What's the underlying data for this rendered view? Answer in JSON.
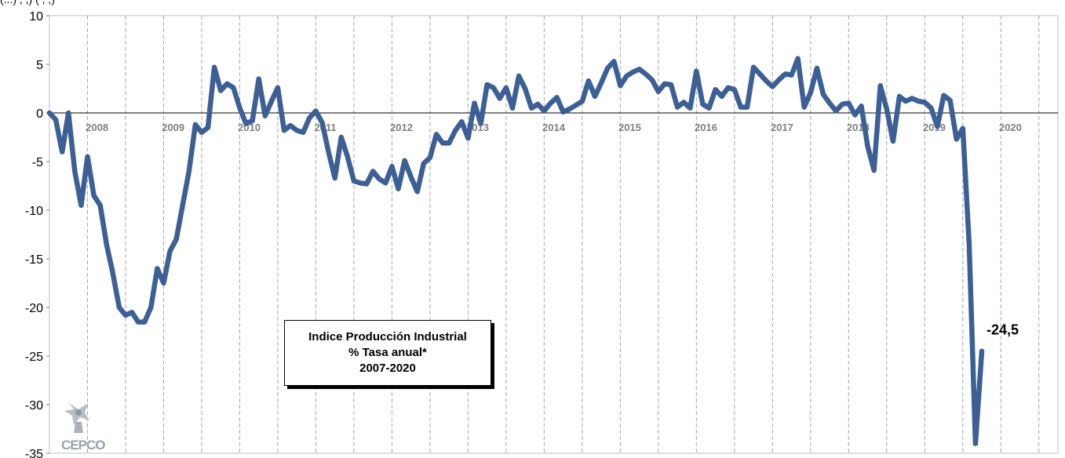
{
  "header": {
    "note": "(...) ,  ,)                              (  ,  ,)"
  },
  "title_box": {
    "line1": "Indice Producción Industrial",
    "line2": "% Tasa anual*",
    "line3": "2007-2020"
  },
  "logo": {
    "text": "CEPCO"
  },
  "colors": {
    "line": "#3c5f95",
    "grid_v": "#a6a6a6",
    "grid_h": "#d9d9d9",
    "zero_line": "#000000"
  },
  "chart_data": {
    "type": "line",
    "title": "Indice Producción Industrial % Tasa anual* 2007-2020",
    "xlabel": "",
    "ylabel": "",
    "ylim": [
      -35,
      10
    ],
    "yticks": [
      10,
      5,
      0,
      -5,
      -10,
      -15,
      -20,
      -25,
      -30,
      -35
    ],
    "ytick_labels": [
      "10",
      "5",
      "0",
      "-5",
      "-10",
      "-15",
      "-20",
      "-25",
      "-30",
      "-35"
    ],
    "xticks": [
      "2008",
      "2009",
      "2010",
      "2011",
      "2012",
      "2013",
      "2014",
      "2015",
      "2016",
      "2017",
      "2018",
      "2019",
      "2020"
    ],
    "grid": "vertical dashed",
    "end_label": "-24,5",
    "series": [
      {
        "x_start": "2007-07",
        "frequency": "monthly",
        "values": [
          0,
          -0.7,
          -4,
          0,
          -6,
          -9.5,
          -4.5,
          -8.5,
          -9.5,
          -13.5,
          -16.5,
          -20,
          -20.8,
          -20.5,
          -21.5,
          -21.5,
          -20,
          -16,
          -17.5,
          -14.2,
          -13,
          -9.5,
          -6,
          -1.2,
          -2,
          -1.5,
          4.7,
          2.3,
          3,
          2.6,
          0.5,
          -1.1,
          -0.8,
          3.5,
          -0.3,
          1.2,
          2.6,
          -1.8,
          -1.3,
          -1.8,
          -2,
          -0.5,
          0.2,
          -1,
          -4,
          -6.7,
          -2.5,
          -4.5,
          -7,
          -7.2,
          -7.3,
          -6,
          -6.8,
          -7.2,
          -5.5,
          -7.8,
          -4.9,
          -6.6,
          -8.1,
          -5.2,
          -4.6,
          -2.2,
          -3.1,
          -3.1,
          -1.8,
          -0.9,
          -2.6,
          1,
          -1.1,
          2.9,
          2.6,
          1.5,
          2.6,
          0.5,
          3.8,
          2.5,
          0.5,
          0.9,
          0.2,
          1,
          1.6,
          0.1,
          0.4,
          0.8,
          1.2,
          3.3,
          1.7,
          3.1,
          4.6,
          5.3,
          2.8,
          3.8,
          4.2,
          4.5,
          4,
          3.4,
          2.2,
          3,
          2.9,
          0.6,
          1.1,
          0.5,
          4.3,
          0.9,
          0.5,
          2.4,
          1.7,
          2.6,
          2.4,
          0.6,
          0.6,
          4.7,
          4,
          3.3,
          2.7,
          3.4,
          4,
          3.9,
          5.6,
          0.6,
          2.1,
          4.6,
          1.9,
          1,
          0.2,
          0.9,
          1,
          -0.2,
          0.7,
          -3.4,
          -5.9,
          2.8,
          0.4,
          -2.9,
          1.7,
          1.2,
          1.5,
          1.2,
          1.1,
          0.5,
          -1.4,
          1.8,
          1.3,
          -2.7,
          -1.6,
          -13.5,
          -34,
          -24.5
        ]
      }
    ]
  }
}
